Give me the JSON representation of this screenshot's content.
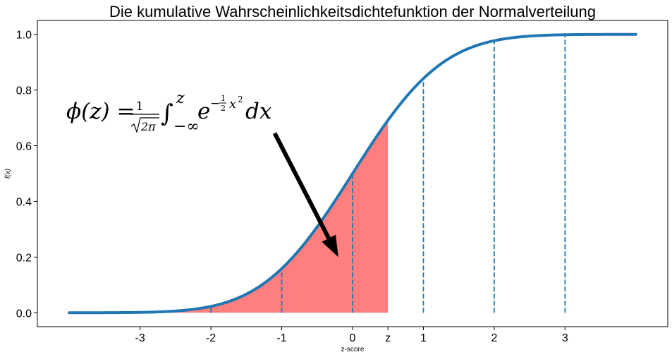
{
  "chart_data": {
    "type": "line",
    "title": "Die kumulative Wahrscheinlichkeitsdichtefunktion der Normalverteilung",
    "xlabel": "z-score",
    "ylabel": "f(x)",
    "xlim": [
      -4.45,
      4.45
    ],
    "ylim": [
      -0.05,
      1.05
    ],
    "x_ticks": [
      {
        "value": -3,
        "label": "-3"
      },
      {
        "value": -2,
        "label": "-2"
      },
      {
        "value": -1,
        "label": "-1"
      },
      {
        "value": 0,
        "label": "0"
      },
      {
        "value": 0.5,
        "label": "z"
      },
      {
        "value": 1,
        "label": "1"
      },
      {
        "value": 2,
        "label": "2"
      },
      {
        "value": 3,
        "label": "3"
      }
    ],
    "y_ticks": [
      {
        "value": 0.0,
        "label": "0.0"
      },
      {
        "value": 0.2,
        "label": "0.2"
      },
      {
        "value": 0.4,
        "label": "0.4"
      },
      {
        "value": 0.6,
        "label": "0.6"
      },
      {
        "value": 0.8,
        "label": "0.8"
      },
      {
        "value": 1.0,
        "label": "1.0"
      }
    ],
    "series": [
      {
        "x_range": [
          -4,
          4
        ],
        "function": "normal_cdf",
        "color": "#1f77b4",
        "samples": [
          {
            "x": -4,
            "y": 0.0
          },
          {
            "x": -3,
            "y": 0.0013
          },
          {
            "x": -2,
            "y": 0.0228
          },
          {
            "x": -1,
            "y": 0.1587
          },
          {
            "x": 0,
            "y": 0.5
          },
          {
            "x": 0.5,
            "y": 0.6915
          },
          {
            "x": 1,
            "y": 0.8413
          },
          {
            "x": 2,
            "y": 0.9772
          },
          {
            "x": 3,
            "y": 0.9987
          },
          {
            "x": 4,
            "y": 1.0
          }
        ]
      }
    ],
    "shaded_area": {
      "from": -4,
      "to": 0.5,
      "color": "#ff7f7f"
    },
    "dashed_lines_x": [
      -2,
      -1,
      0,
      1,
      2,
      3
    ],
    "dashed_color": "#1f77b4",
    "annotation": {
      "formula_parts": {
        "phi": "ϕ(z) = ",
        "frac_num": "1",
        "frac_den": "2π",
        "integral": "∫",
        "upper": "z",
        "lower": "−∞",
        "e": "e",
        "exp_sign": "−",
        "exp_num": "1",
        "exp_den": "2",
        "exp_var": "x",
        "exp_pow": "2",
        "dx": "dx"
      },
      "arrow_from": {
        "x": -1.1,
        "y": 0.645
      },
      "arrow_to": {
        "x": -0.2,
        "y": 0.2
      },
      "arrow_color": "#000000"
    }
  }
}
